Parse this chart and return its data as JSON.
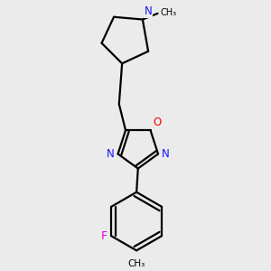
{
  "bg_color": "#ebebeb",
  "bond_color": "#000000",
  "bond_lw": 1.6,
  "atom_colors": {
    "N": "#1414ff",
    "O": "#ff0000",
    "F": "#e000e0",
    "C": "#000000"
  },
  "font_size": 8.5,
  "fig_w": 3.0,
  "fig_h": 3.0,
  "dpi": 100
}
